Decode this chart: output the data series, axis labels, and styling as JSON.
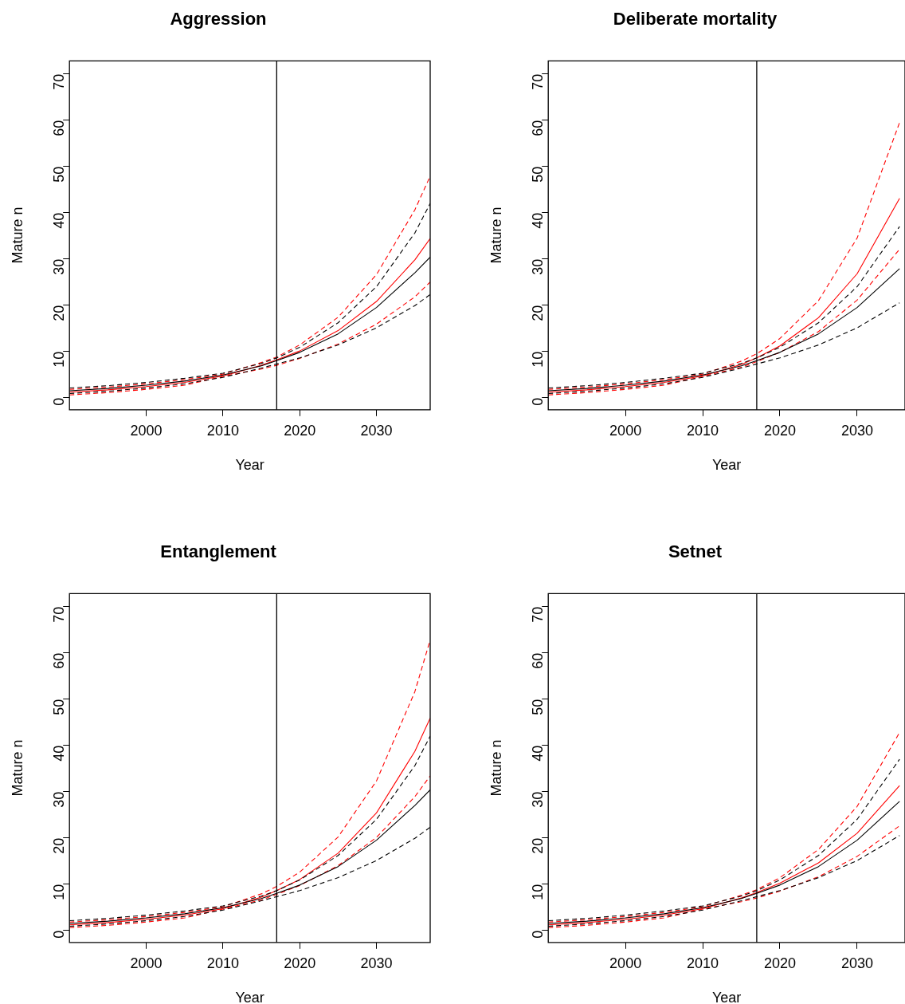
{
  "chart_data": [
    {
      "type": "line",
      "title": "Aggression",
      "xlabel": "Year",
      "ylabel": "Mature n",
      "x": [
        1990,
        1995,
        2000,
        2005,
        2010,
        2015,
        2017,
        2020,
        2025,
        2030,
        2035,
        2037
      ],
      "xlim": [
        1990,
        2037
      ],
      "xticks": [
        2000,
        2010,
        2020,
        2030
      ],
      "ylim": [
        -2.6,
        72.8
      ],
      "yticks": [
        0,
        10,
        20,
        30,
        40,
        50,
        60,
        70
      ],
      "grid": false,
      "ref_lines": [
        {
          "axis": "x",
          "value": 2017,
          "color": "#000000"
        }
      ],
      "series": [
        {
          "color": "#000000",
          "line_style": "solid",
          "values": [
            1.5,
            2.0,
            2.7,
            3.6,
            4.9,
            6.9,
            8.0,
            9.8,
            13.8,
            19.5,
            27.0,
            30.4
          ]
        },
        {
          "color": "#000000",
          "line_style": "dashed",
          "values": [
            2.1,
            2.6,
            3.3,
            4.2,
            5.3,
            7.4,
            8.6,
            10.9,
            16.2,
            24.0,
            35.6,
            42.0
          ]
        },
        {
          "color": "#000000",
          "line_style": "dashed",
          "values": [
            0.9,
            1.4,
            2.1,
            3.0,
            4.4,
            6.4,
            7.3,
            8.6,
            11.4,
            15.1,
            19.9,
            22.3
          ]
        },
        {
          "color": "#ff0000",
          "line_style": "solid",
          "values": [
            1.2,
            1.7,
            2.4,
            3.3,
            4.7,
            7.0,
            8.2,
            10.1,
            14.5,
            20.8,
            29.8,
            34.4
          ]
        },
        {
          "color": "#ff0000",
          "line_style": "dashed",
          "values": [
            1.8,
            2.3,
            3.0,
            3.9,
            5.1,
            7.6,
            8.8,
            11.4,
            17.4,
            26.6,
            40.6,
            47.9
          ]
        },
        {
          "color": "#ff0000",
          "line_style": "dashed",
          "values": [
            0.6,
            1.1,
            1.8,
            2.7,
            4.6,
            6.2,
            7.0,
            8.5,
            11.6,
            15.9,
            21.8,
            25.0
          ]
        }
      ]
    },
    {
      "type": "line",
      "title": "Deliberate mortality",
      "xlabel": "Year",
      "ylabel": "Mature n",
      "x": [
        1990,
        1995,
        2000,
        2005,
        2010,
        2015,
        2017,
        2020,
        2025,
        2030,
        2035.5
      ],
      "xlim": [
        1990,
        2036.2
      ],
      "xticks": [
        2000,
        2010,
        2020,
        2030
      ],
      "ylim": [
        -2.6,
        72.8
      ],
      "yticks": [
        0,
        10,
        20,
        30,
        40,
        50,
        60,
        70
      ],
      "grid": false,
      "ref_lines": [
        {
          "axis": "x",
          "value": 2017,
          "color": "#000000"
        }
      ],
      "series": [
        {
          "color": "#000000",
          "line_style": "solid",
          "values": [
            1.5,
            2.0,
            2.7,
            3.6,
            4.9,
            6.9,
            8.0,
            9.8,
            13.8,
            19.5,
            27.9
          ]
        },
        {
          "color": "#000000",
          "line_style": "dashed",
          "values": [
            2.1,
            2.6,
            3.3,
            4.2,
            5.3,
            7.4,
            8.6,
            10.9,
            16.2,
            24.0,
            37.0
          ]
        },
        {
          "color": "#000000",
          "line_style": "dashed",
          "values": [
            0.9,
            1.4,
            2.1,
            3.0,
            4.4,
            6.4,
            7.3,
            8.6,
            11.4,
            15.1,
            20.5
          ]
        },
        {
          "color": "#ff0000",
          "line_style": "solid",
          "values": [
            1.2,
            1.7,
            2.4,
            3.3,
            4.7,
            7.2,
            8.6,
            11.2,
            17.3,
            26.8,
            43.1
          ]
        },
        {
          "color": "#ff0000",
          "line_style": "dashed",
          "values": [
            1.8,
            2.3,
            3.0,
            3.9,
            5.1,
            7.9,
            9.5,
            12.8,
            21.0,
            34.5,
            59.5
          ]
        },
        {
          "color": "#ff0000",
          "line_style": "dashed",
          "values": [
            0.6,
            1.1,
            1.8,
            2.7,
            4.6,
            6.6,
            7.8,
            9.8,
            14.3,
            21.1,
            32.1
          ]
        }
      ]
    },
    {
      "type": "line",
      "title": "Entanglement",
      "xlabel": "Year",
      "ylabel": "Mature n",
      "x": [
        1990,
        1995,
        2000,
        2005,
        2010,
        2015,
        2017,
        2020,
        2025,
        2030,
        2035,
        2037
      ],
      "xlim": [
        1990,
        2037
      ],
      "xticks": [
        2000,
        2010,
        2020,
        2030
      ],
      "ylim": [
        -2.6,
        72.8
      ],
      "yticks": [
        0,
        10,
        20,
        30,
        40,
        50,
        60,
        70
      ],
      "grid": false,
      "ref_lines": [
        {
          "axis": "x",
          "value": 2017,
          "color": "#000000"
        }
      ],
      "series": [
        {
          "color": "#000000",
          "line_style": "solid",
          "values": [
            1.5,
            2.0,
            2.7,
            3.6,
            4.9,
            6.9,
            8.0,
            9.8,
            13.8,
            19.5,
            27.0,
            30.4
          ]
        },
        {
          "color": "#000000",
          "line_style": "dashed",
          "values": [
            2.1,
            2.6,
            3.3,
            4.2,
            5.3,
            7.4,
            8.6,
            10.9,
            16.2,
            24.0,
            35.6,
            42.0
          ]
        },
        {
          "color": "#000000",
          "line_style": "dashed",
          "values": [
            0.9,
            1.4,
            2.1,
            3.0,
            4.4,
            6.4,
            7.3,
            8.6,
            11.4,
            15.1,
            19.9,
            22.3
          ]
        },
        {
          "color": "#ff0000",
          "line_style": "solid",
          "values": [
            1.2,
            1.7,
            2.4,
            3.3,
            4.7,
            7.2,
            8.6,
            11.0,
            16.7,
            25.4,
            38.7,
            45.9
          ]
        },
        {
          "color": "#ff0000",
          "line_style": "dashed",
          "values": [
            1.8,
            2.3,
            3.0,
            3.9,
            5.1,
            7.9,
            9.5,
            12.6,
            20.2,
            32.3,
            51.6,
            62.8
          ]
        },
        {
          "color": "#ff0000",
          "line_style": "dashed",
          "values": [
            0.6,
            1.1,
            1.8,
            2.7,
            4.6,
            6.6,
            7.8,
            9.7,
            14.0,
            20.1,
            28.9,
            33.4
          ]
        }
      ]
    },
    {
      "type": "line",
      "title": "Setnet",
      "xlabel": "Year",
      "ylabel": "Mature n",
      "x": [
        1990,
        1995,
        2000,
        2005,
        2010,
        2015,
        2017,
        2020,
        2025,
        2030,
        2035.5
      ],
      "xlim": [
        1990,
        2036.2
      ],
      "xticks": [
        2000,
        2010,
        2020,
        2030
      ],
      "ylim": [
        -2.6,
        72.8
      ],
      "yticks": [
        0,
        10,
        20,
        30,
        40,
        50,
        60,
        70
      ],
      "grid": false,
      "ref_lines": [
        {
          "axis": "x",
          "value": 2017,
          "color": "#000000"
        }
      ],
      "series": [
        {
          "color": "#000000",
          "line_style": "solid",
          "values": [
            1.5,
            2.0,
            2.7,
            3.6,
            4.9,
            6.9,
            8.0,
            9.8,
            13.8,
            19.5,
            27.9
          ]
        },
        {
          "color": "#000000",
          "line_style": "dashed",
          "values": [
            2.1,
            2.6,
            3.3,
            4.2,
            5.3,
            7.4,
            8.6,
            10.9,
            16.2,
            24.0,
            37.0
          ]
        },
        {
          "color": "#000000",
          "line_style": "dashed",
          "values": [
            0.9,
            1.4,
            2.1,
            3.0,
            4.4,
            6.4,
            7.3,
            8.6,
            11.4,
            15.1,
            20.5
          ]
        },
        {
          "color": "#ff0000",
          "line_style": "solid",
          "values": [
            1.2,
            1.7,
            2.4,
            3.3,
            4.7,
            7.0,
            8.2,
            10.2,
            14.6,
            21.0,
            31.3
          ]
        },
        {
          "color": "#ff0000",
          "line_style": "dashed",
          "values": [
            1.8,
            2.3,
            3.0,
            3.9,
            5.1,
            7.6,
            8.8,
            11.4,
            17.5,
            26.8,
            42.8
          ]
        },
        {
          "color": "#ff0000",
          "line_style": "dashed",
          "values": [
            0.6,
            1.1,
            1.8,
            2.7,
            4.6,
            6.2,
            7.0,
            8.5,
            11.6,
            16.0,
            22.6
          ]
        }
      ]
    }
  ]
}
